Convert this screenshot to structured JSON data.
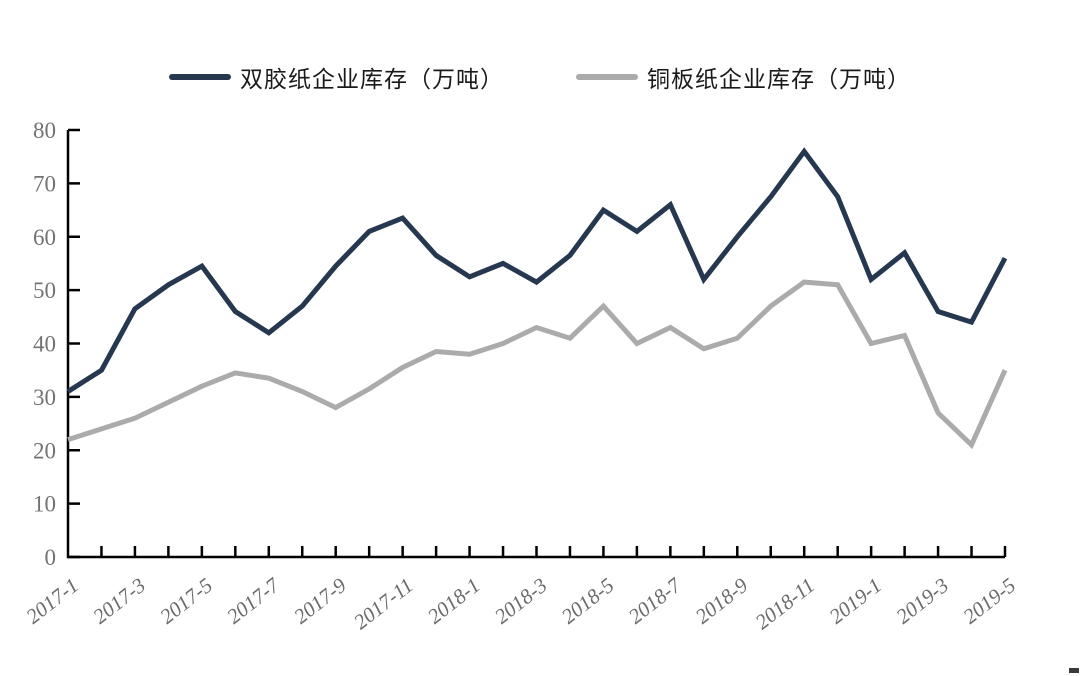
{
  "chart_data": {
    "type": "line",
    "title": "",
    "xlabel": "",
    "ylabel": "",
    "x": [
      "2017-1",
      "2017-2",
      "2017-3",
      "2017-4",
      "2017-5",
      "2017-6",
      "2017-7",
      "2017-8",
      "2017-9",
      "2017-10",
      "2017-11",
      "2017-12",
      "2018-1",
      "2018-2",
      "2018-3",
      "2018-4",
      "2018-5",
      "2018-6",
      "2018-7",
      "2018-8",
      "2018-9",
      "2018-10",
      "2018-11",
      "2018-12",
      "2019-1",
      "2019-2",
      "2019-3",
      "2019-4",
      "2019-5"
    ],
    "x_tick_labels_shown": [
      "2017-1",
      "2017-3",
      "2017-5",
      "2017-7",
      "2017-9",
      "2017-11",
      "2018-1",
      "2018-3",
      "2018-5",
      "2018-7",
      "2018-9",
      "2018-11",
      "2019-1",
      "2019-3",
      "2019-5"
    ],
    "series": [
      {
        "name": "双胶纸企业库存（万吨）",
        "color": "#263850",
        "values": [
          31,
          35,
          46.5,
          51,
          54.5,
          46,
          42,
          47,
          54.5,
          61,
          63.5,
          56.5,
          52.5,
          55,
          51.5,
          56.5,
          65,
          61,
          66,
          52,
          60,
          67.5,
          76,
          67.5,
          52,
          57,
          46,
          44,
          56
        ]
      },
      {
        "name": "铜板纸企业库存（万吨）",
        "color": "#ABABAB",
        "values": [
          22,
          24,
          26,
          29,
          32,
          34.5,
          33.5,
          31,
          28,
          31.5,
          35.5,
          38.5,
          38,
          40,
          43,
          41,
          47,
          40,
          43,
          39,
          41,
          47,
          51.5,
          51,
          40,
          41.5,
          27,
          21,
          35
        ]
      }
    ],
    "ylim": [
      0,
      80
    ],
    "y_ticks": [
      0,
      10,
      20,
      30,
      40,
      50,
      60,
      70,
      80
    ],
    "grid": "off",
    "legend_position": "top",
    "axis_color": "#000000",
    "y_tick_label_color": "#737373",
    "x_tick_label_color": "#6b6b6b"
  }
}
